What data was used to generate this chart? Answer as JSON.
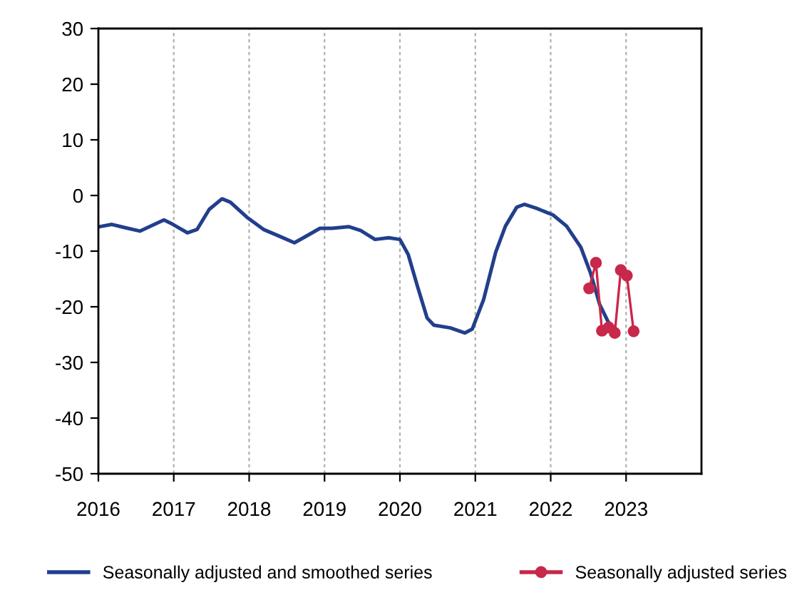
{
  "chart_data": {
    "type": "line",
    "xlim": [
      2016,
      2024
    ],
    "xticks": [
      2016,
      2017,
      2018,
      2019,
      2020,
      2021,
      2022,
      2023
    ],
    "ylim": [
      -50,
      30
    ],
    "yticks": [
      -50,
      -40,
      -30,
      -20,
      -10,
      0,
      10,
      20,
      30
    ],
    "grid": "x",
    "legend": "bottom",
    "series": [
      {
        "name": "Seasonally adjusted and smoothed series",
        "color": "#223f8c",
        "marker": "none",
        "x": [
          2016.02,
          2016.18,
          2016.33,
          2016.55,
          2016.87,
          2016.99,
          2017.18,
          2017.31,
          2017.47,
          2017.64,
          2017.75,
          2017.97,
          2018.19,
          2018.38,
          2018.6,
          2018.72,
          2018.94,
          2019.1,
          2019.32,
          2019.48,
          2019.67,
          2019.85,
          2020.0,
          2020.11,
          2020.23,
          2020.36,
          2020.45,
          2020.67,
          2020.86,
          2020.96,
          2021.11,
          2021.27,
          2021.4,
          2021.55,
          2021.65,
          2021.81,
          2022.03,
          2022.21,
          2022.4,
          2022.53,
          2022.65,
          2022.78
        ],
        "values": [
          -5.6,
          -5.2,
          -5.7,
          -6.4,
          -4.4,
          -5.2,
          -6.7,
          -6.1,
          -2.5,
          -0.6,
          -1.2,
          -3.9,
          -6.1,
          -7.2,
          -8.5,
          -7.6,
          -5.9,
          -5.9,
          -5.6,
          -6.3,
          -7.9,
          -7.6,
          -7.9,
          -10.6,
          -16.2,
          -22.0,
          -23.3,
          -23.8,
          -24.7,
          -24.0,
          -18.7,
          -10.2,
          -5.5,
          -2.1,
          -1.6,
          -2.3,
          -3.5,
          -5.5,
          -9.3,
          -14.0,
          -19.6,
          -23.2
        ]
      },
      {
        "name": "Seasonally adjusted series",
        "color": "#c8284a",
        "marker": "circle",
        "x": [
          2022.51,
          2022.6,
          2022.68,
          2022.77,
          2022.85,
          2022.93,
          2023.01,
          2023.1
        ],
        "values": [
          -16.7,
          -12.1,
          -24.3,
          -23.7,
          -24.7,
          -13.4,
          -14.4,
          -24.4
        ]
      }
    ]
  }
}
